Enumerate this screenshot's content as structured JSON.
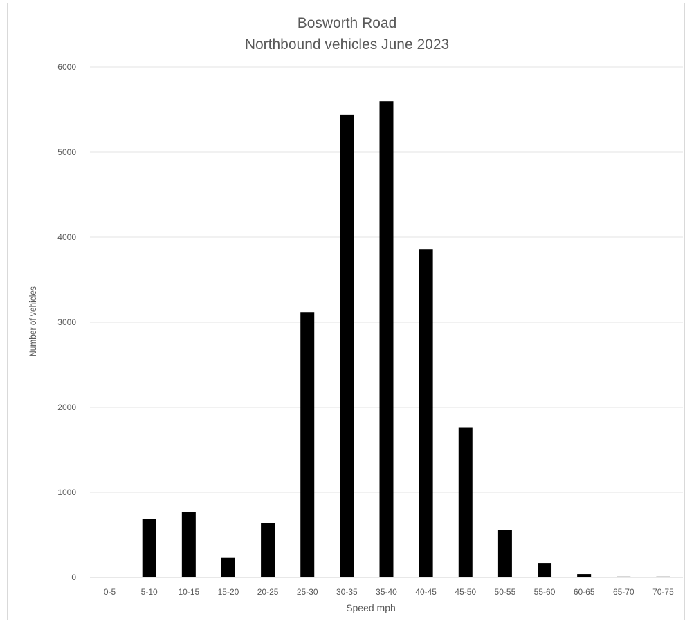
{
  "chart_data": {
    "type": "bar",
    "title": "Bosworth Road",
    "subtitle": "Northbound vehicles June 2023",
    "xlabel": "Speed mph",
    "ylabel": "Number of vehicles",
    "categories": [
      "0-5",
      "5-10",
      "10-15",
      "15-20",
      "20-25",
      "25-30",
      "30-35",
      "35-40",
      "40-45",
      "45-50",
      "50-55",
      "55-60",
      "60-65",
      "65-70",
      "70-75"
    ],
    "values": [
      0,
      690,
      770,
      230,
      640,
      3120,
      5440,
      5600,
      3860,
      1760,
      560,
      170,
      40,
      15,
      15
    ],
    "ylim": [
      0,
      6000
    ],
    "yticks": [
      0,
      1000,
      2000,
      3000,
      4000,
      5000,
      6000
    ],
    "grid": true,
    "legend": "none",
    "colors": {
      "bar": "#000000",
      "low_bar": "#d0d0d0",
      "grid": "#e3e3e3",
      "text": "#595959"
    }
  }
}
